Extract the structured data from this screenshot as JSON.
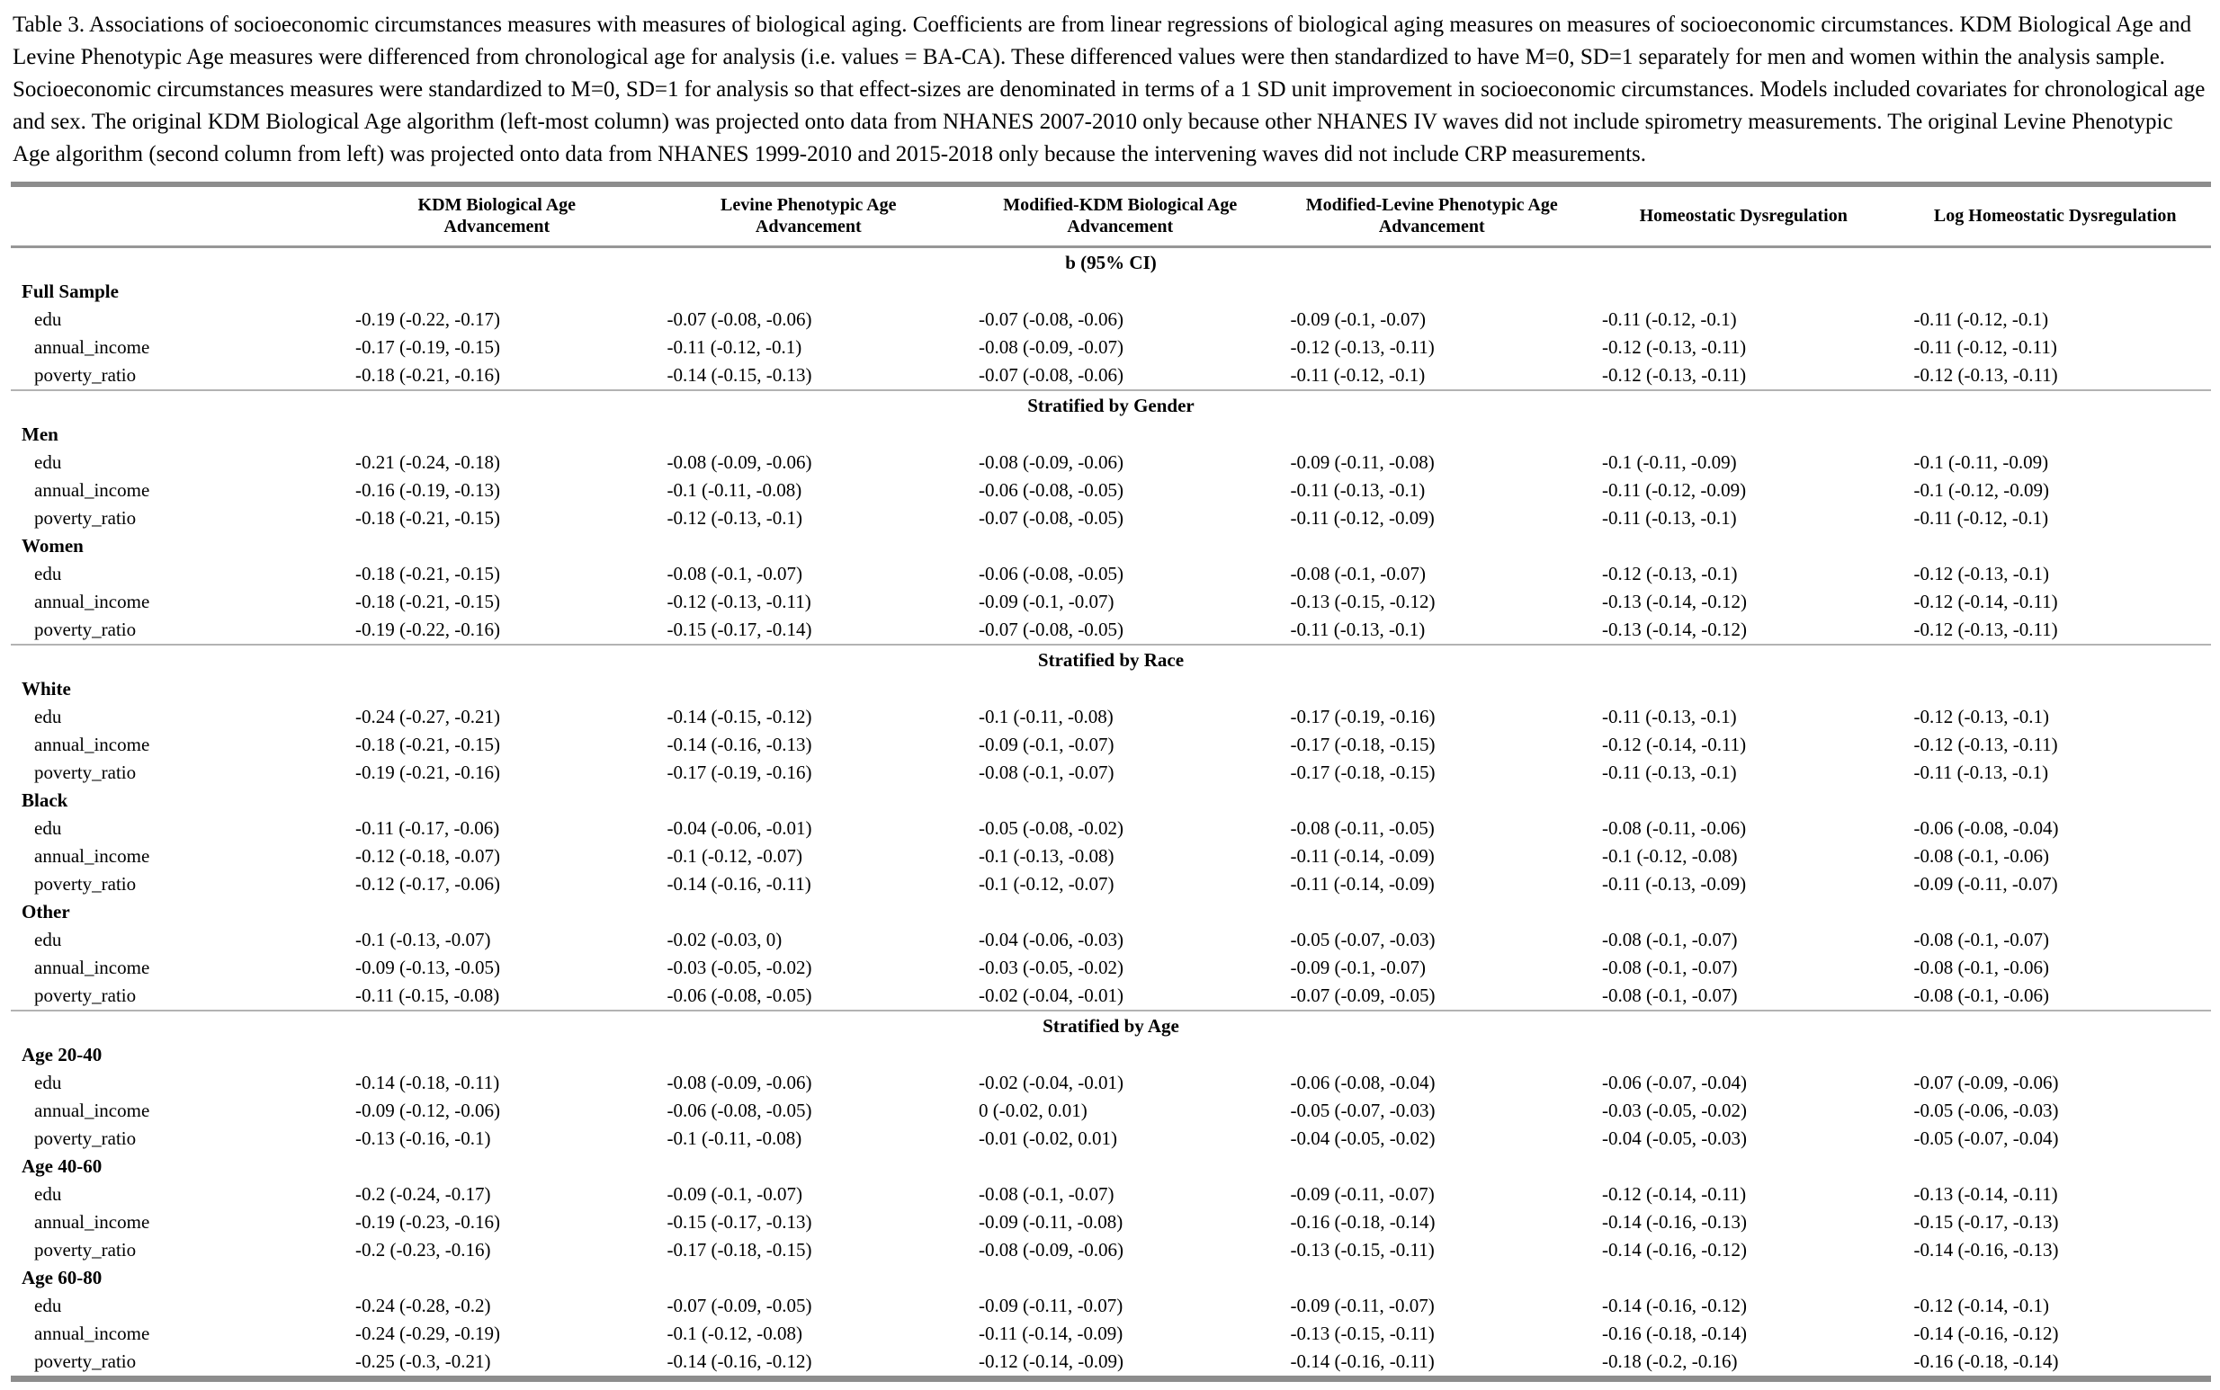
{
  "caption": "Table 3. Associations of socioeconomic circumstances measures with measures of biological aging. Coefficients are from linear regressions of biological aging measures on measures of socioeconomic circumstances. KDM Biological Age and Levine Phenotypic Age measures were differenced from chronological age for analysis (i.e. values = BA-CA). These differenced values were then standardized to have M=0, SD=1 separately for men and women within the analysis sample. Socioeconomic circumstances measures were standardized to M=0, SD=1 for analysis so that effect-sizes are denominated in terms of a 1 SD unit improvement in socioeconomic circumstances. Models included covariates for chronological age and sex. The original KDM Biological Age algorithm (left-most column) was projected onto data from NHANES 2007-2010 only because other NHANES IV waves did not include spirometry measurements. The original Levine Phenotypic Age algorithm (second column from left) was projected onto data from NHANES 1999-2010 and 2015-2018 only because the intervening waves did not include CRP measurements.",
  "table": {
    "columns": [
      "KDM Biological Age Advancement",
      "Levine Phenotypic Age Advancement",
      "Modified-KDM Biological Age Advancement",
      "Modified-Levine Phenotypic Age Advancement",
      "Homeostatic Dysregulation",
      "Log Homeostatic Dysregulation"
    ],
    "subheader": "b (95% CI)",
    "sections": [
      {
        "divider": "",
        "groups": [
          {
            "name": "Full Sample",
            "rows": [
              {
                "label": "edu",
                "values": [
                  "-0.19 (-0.22, -0.17)",
                  "-0.07 (-0.08, -0.06)",
                  "-0.07 (-0.08, -0.06)",
                  "-0.09 (-0.1, -0.07)",
                  "-0.11 (-0.12, -0.1)",
                  "-0.11 (-0.12, -0.1)"
                ]
              },
              {
                "label": "annual_income",
                "values": [
                  "-0.17 (-0.19, -0.15)",
                  "-0.11 (-0.12, -0.1)",
                  "-0.08 (-0.09, -0.07)",
                  "-0.12 (-0.13, -0.11)",
                  "-0.12 (-0.13, -0.11)",
                  "-0.11 (-0.12, -0.11)"
                ]
              },
              {
                "label": "poverty_ratio",
                "values": [
                  "-0.18 (-0.21, -0.16)",
                  "-0.14 (-0.15, -0.13)",
                  "-0.07 (-0.08, -0.06)",
                  "-0.11 (-0.12, -0.1)",
                  "-0.12 (-0.13, -0.11)",
                  "-0.12 (-0.13, -0.11)"
                ]
              }
            ]
          }
        ]
      },
      {
        "divider": "Stratified by Gender",
        "groups": [
          {
            "name": "Men",
            "rows": [
              {
                "label": "edu",
                "values": [
                  "-0.21 (-0.24, -0.18)",
                  "-0.08 (-0.09, -0.06)",
                  "-0.08 (-0.09, -0.06)",
                  "-0.09 (-0.11, -0.08)",
                  "-0.1 (-0.11, -0.09)",
                  "-0.1 (-0.11, -0.09)"
                ]
              },
              {
                "label": "annual_income",
                "values": [
                  "-0.16 (-0.19, -0.13)",
                  "-0.1 (-0.11, -0.08)",
                  "-0.06 (-0.08, -0.05)",
                  "-0.11 (-0.13, -0.1)",
                  "-0.11 (-0.12, -0.09)",
                  "-0.1 (-0.12, -0.09)"
                ]
              },
              {
                "label": "poverty_ratio",
                "values": [
                  "-0.18 (-0.21, -0.15)",
                  "-0.12 (-0.13, -0.1)",
                  "-0.07 (-0.08, -0.05)",
                  "-0.11 (-0.12, -0.09)",
                  "-0.11 (-0.13, -0.1)",
                  "-0.11 (-0.12, -0.1)"
                ]
              }
            ]
          },
          {
            "name": "Women",
            "rows": [
              {
                "label": "edu",
                "values": [
                  "-0.18 (-0.21, -0.15)",
                  "-0.08 (-0.1, -0.07)",
                  "-0.06 (-0.08, -0.05)",
                  "-0.08 (-0.1, -0.07)",
                  "-0.12 (-0.13, -0.1)",
                  "-0.12 (-0.13, -0.1)"
                ]
              },
              {
                "label": "annual_income",
                "values": [
                  "-0.18 (-0.21, -0.15)",
                  "-0.12 (-0.13, -0.11)",
                  "-0.09 (-0.1, -0.07)",
                  "-0.13 (-0.15, -0.12)",
                  "-0.13 (-0.14, -0.12)",
                  "-0.12 (-0.14, -0.11)"
                ]
              },
              {
                "label": "poverty_ratio",
                "values": [
                  "-0.19 (-0.22, -0.16)",
                  "-0.15 (-0.17, -0.14)",
                  "-0.07 (-0.08, -0.05)",
                  "-0.11 (-0.13, -0.1)",
                  "-0.13 (-0.14, -0.12)",
                  "-0.12 (-0.13, -0.11)"
                ]
              }
            ]
          }
        ]
      },
      {
        "divider": "Stratified by Race",
        "groups": [
          {
            "name": "White",
            "rows": [
              {
                "label": "edu",
                "values": [
                  "-0.24 (-0.27, -0.21)",
                  "-0.14 (-0.15, -0.12)",
                  "-0.1 (-0.11, -0.08)",
                  "-0.17 (-0.19, -0.16)",
                  "-0.11 (-0.13, -0.1)",
                  "-0.12 (-0.13, -0.1)"
                ]
              },
              {
                "label": "annual_income",
                "values": [
                  "-0.18 (-0.21, -0.15)",
                  "-0.14 (-0.16, -0.13)",
                  "-0.09 (-0.1, -0.07)",
                  "-0.17 (-0.18, -0.15)",
                  "-0.12 (-0.14, -0.11)",
                  "-0.12 (-0.13, -0.11)"
                ]
              },
              {
                "label": "poverty_ratio",
                "values": [
                  "-0.19 (-0.21, -0.16)",
                  "-0.17 (-0.19, -0.16)",
                  "-0.08 (-0.1, -0.07)",
                  "-0.17 (-0.18, -0.15)",
                  "-0.11 (-0.13, -0.1)",
                  "-0.11 (-0.13, -0.1)"
                ]
              }
            ]
          },
          {
            "name": "Black",
            "rows": [
              {
                "label": "edu",
                "values": [
                  "-0.11 (-0.17, -0.06)",
                  "-0.04 (-0.06, -0.01)",
                  "-0.05 (-0.08, -0.02)",
                  "-0.08 (-0.11, -0.05)",
                  "-0.08 (-0.11, -0.06)",
                  "-0.06 (-0.08, -0.04)"
                ]
              },
              {
                "label": "annual_income",
                "values": [
                  "-0.12 (-0.18, -0.07)",
                  "-0.1 (-0.12, -0.07)",
                  "-0.1 (-0.13, -0.08)",
                  "-0.11 (-0.14, -0.09)",
                  "-0.1 (-0.12, -0.08)",
                  "-0.08 (-0.1, -0.06)"
                ]
              },
              {
                "label": "poverty_ratio",
                "values": [
                  "-0.12 (-0.17, -0.06)",
                  "-0.14 (-0.16, -0.11)",
                  "-0.1 (-0.12, -0.07)",
                  "-0.11 (-0.14, -0.09)",
                  "-0.11 (-0.13, -0.09)",
                  "-0.09 (-0.11, -0.07)"
                ]
              }
            ]
          },
          {
            "name": "Other",
            "rows": [
              {
                "label": "edu",
                "values": [
                  "-0.1 (-0.13, -0.07)",
                  "-0.02 (-0.03, 0)",
                  "-0.04 (-0.06, -0.03)",
                  "-0.05 (-0.07, -0.03)",
                  "-0.08 (-0.1, -0.07)",
                  "-0.08 (-0.1, -0.07)"
                ]
              },
              {
                "label": "annual_income",
                "values": [
                  "-0.09 (-0.13, -0.05)",
                  "-0.03 (-0.05, -0.02)",
                  "-0.03 (-0.05, -0.02)",
                  "-0.09 (-0.1, -0.07)",
                  "-0.08 (-0.1, -0.07)",
                  "-0.08 (-0.1, -0.06)"
                ]
              },
              {
                "label": "poverty_ratio",
                "values": [
                  "-0.11 (-0.15, -0.08)",
                  "-0.06 (-0.08, -0.05)",
                  "-0.02 (-0.04, -0.01)",
                  "-0.07 (-0.09, -0.05)",
                  "-0.08 (-0.1, -0.07)",
                  "-0.08 (-0.1, -0.06)"
                ]
              }
            ]
          }
        ]
      },
      {
        "divider": "Stratified by Age",
        "groups": [
          {
            "name": "Age 20-40",
            "rows": [
              {
                "label": "edu",
                "values": [
                  "-0.14 (-0.18, -0.11)",
                  "-0.08 (-0.09, -0.06)",
                  "-0.02 (-0.04, -0.01)",
                  "-0.06 (-0.08, -0.04)",
                  "-0.06 (-0.07, -0.04)",
                  "-0.07 (-0.09, -0.06)"
                ]
              },
              {
                "label": "annual_income",
                "values": [
                  "-0.09 (-0.12, -0.06)",
                  "-0.06 (-0.08, -0.05)",
                  "0 (-0.02, 0.01)",
                  "-0.05 (-0.07, -0.03)",
                  "-0.03 (-0.05, -0.02)",
                  "-0.05 (-0.06, -0.03)"
                ]
              },
              {
                "label": "poverty_ratio",
                "values": [
                  "-0.13 (-0.16, -0.1)",
                  "-0.1 (-0.11, -0.08)",
                  "-0.01 (-0.02, 0.01)",
                  "-0.04 (-0.05, -0.02)",
                  "-0.04 (-0.05, -0.03)",
                  "-0.05 (-0.07, -0.04)"
                ]
              }
            ]
          },
          {
            "name": "Age 40-60",
            "rows": [
              {
                "label": "edu",
                "values": [
                  "-0.2 (-0.24, -0.17)",
                  "-0.09 (-0.1, -0.07)",
                  "-0.08 (-0.1, -0.07)",
                  "-0.09 (-0.11, -0.07)",
                  "-0.12 (-0.14, -0.11)",
                  "-0.13 (-0.14, -0.11)"
                ]
              },
              {
                "label": "annual_income",
                "values": [
                  "-0.19 (-0.23, -0.16)",
                  "-0.15 (-0.17, -0.13)",
                  "-0.09 (-0.11, -0.08)",
                  "-0.16 (-0.18, -0.14)",
                  "-0.14 (-0.16, -0.13)",
                  "-0.15 (-0.17, -0.13)"
                ]
              },
              {
                "label": "poverty_ratio",
                "values": [
                  "-0.2 (-0.23, -0.16)",
                  "-0.17 (-0.18, -0.15)",
                  "-0.08 (-0.09, -0.06)",
                  "-0.13 (-0.15, -0.11)",
                  "-0.14 (-0.16, -0.12)",
                  "-0.14 (-0.16, -0.13)"
                ]
              }
            ]
          },
          {
            "name": "Age 60-80",
            "rows": [
              {
                "label": "edu",
                "values": [
                  "-0.24 (-0.28, -0.2)",
                  "-0.07 (-0.09, -0.05)",
                  "-0.09 (-0.11, -0.07)",
                  "-0.09 (-0.11, -0.07)",
                  "-0.14 (-0.16, -0.12)",
                  "-0.12 (-0.14, -0.1)"
                ]
              },
              {
                "label": "annual_income",
                "values": [
                  "-0.24 (-0.29, -0.19)",
                  "-0.1 (-0.12, -0.08)",
                  "-0.11 (-0.14, -0.09)",
                  "-0.13 (-0.15, -0.11)",
                  "-0.16 (-0.18, -0.14)",
                  "-0.14 (-0.16, -0.12)"
                ]
              },
              {
                "label": "poverty_ratio",
                "values": [
                  "-0.25 (-0.3, -0.21)",
                  "-0.14 (-0.16, -0.12)",
                  "-0.12 (-0.14, -0.09)",
                  "-0.14 (-0.16, -0.11)",
                  "-0.18 (-0.2, -0.16)",
                  "-0.16 (-0.18, -0.14)"
                ]
              }
            ]
          }
        ]
      }
    ]
  }
}
